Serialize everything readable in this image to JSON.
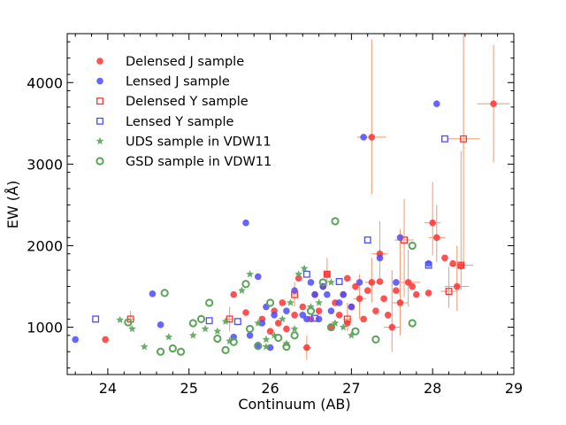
{
  "chart_data": {
    "type": "scatter",
    "title": "",
    "xlabel": "Continuum (AB)",
    "ylabel": "EW (Å)",
    "xlim": [
      23.5,
      29.0
    ],
    "ylim": [
      420,
      4600
    ],
    "xticks": [
      24,
      25,
      26,
      27,
      28,
      29
    ],
    "yticks": [
      1000,
      2000,
      3000,
      4000
    ],
    "legend_position": "top-left",
    "series": [
      {
        "name": "Delensed J sample",
        "marker": "filled-circle",
        "color": "#ff3333",
        "points": [
          {
            "x": 23.97,
            "y": 850
          },
          {
            "x": 25.55,
            "y": 1400
          },
          {
            "x": 25.7,
            "y": 1180
          },
          {
            "x": 25.9,
            "y": 1100
          },
          {
            "x": 26.0,
            "y": 950
          },
          {
            "x": 26.05,
            "y": 1200
          },
          {
            "x": 26.1,
            "y": 1050
          },
          {
            "x": 26.15,
            "y": 1300
          },
          {
            "x": 26.2,
            "y": 980
          },
          {
            "x": 26.3,
            "y": 1150
          },
          {
            "x": 26.35,
            "y": 1600
          },
          {
            "x": 26.4,
            "y": 1250
          },
          {
            "x": 26.45,
            "y": 750
          },
          {
            "x": 26.5,
            "y": 1100
          },
          {
            "x": 26.55,
            "y": 1400
          },
          {
            "x": 26.6,
            "y": 1200
          },
          {
            "x": 26.65,
            "y": 1500
          },
          {
            "x": 26.7,
            "y": 1650
          },
          {
            "x": 26.75,
            "y": 1000
          },
          {
            "x": 26.8,
            "y": 1300
          },
          {
            "x": 26.85,
            "y": 1150
          },
          {
            "x": 26.9,
            "y": 1400
          },
          {
            "x": 26.95,
            "y": 1050
          },
          {
            "x": 27.0,
            "y": 1250
          },
          {
            "x": 27.05,
            "y": 1500
          },
          {
            "x": 27.1,
            "y": 1350
          },
          {
            "x": 27.15,
            "y": 1100
          },
          {
            "x": 27.2,
            "y": 1450
          },
          {
            "x": 27.25,
            "y": 1550
          },
          {
            "x": 27.3,
            "y": 1200
          },
          {
            "x": 27.35,
            "y": 1900
          },
          {
            "x": 27.4,
            "y": 1350
          },
          {
            "x": 27.45,
            "y": 1150
          },
          {
            "x": 27.5,
            "y": 1000
          },
          {
            "x": 27.55,
            "y": 1450
          },
          {
            "x": 27.6,
            "y": 1300
          },
          {
            "x": 27.7,
            "y": 1550
          },
          {
            "x": 27.75,
            "y": 1500
          },
          {
            "x": 27.8,
            "y": 1400
          },
          {
            "x": 27.95,
            "y": 1420
          },
          {
            "x": 28.0,
            "y": 2280
          },
          {
            "x": 28.05,
            "y": 2100
          },
          {
            "x": 28.15,
            "y": 1850
          },
          {
            "x": 28.25,
            "y": 1780
          },
          {
            "x": 28.3,
            "y": 1500
          },
          {
            "x": 28.35,
            "y": 1750
          },
          {
            "x": 27.25,
            "y": 3330
          },
          {
            "x": 28.75,
            "y": 3740
          },
          {
            "x": 27.35,
            "y": 1560
          },
          {
            "x": 26.95,
            "y": 1600
          }
        ]
      },
      {
        "name": "Lensed J sample",
        "marker": "filled-circle",
        "color": "#4b4bff",
        "points": [
          {
            "x": 23.6,
            "y": 850
          },
          {
            "x": 24.55,
            "y": 1410
          },
          {
            "x": 24.65,
            "y": 1030
          },
          {
            "x": 25.55,
            "y": 880
          },
          {
            "x": 25.7,
            "y": 2280
          },
          {
            "x": 25.75,
            "y": 900
          },
          {
            "x": 25.85,
            "y": 1620
          },
          {
            "x": 25.9,
            "y": 1050
          },
          {
            "x": 25.95,
            "y": 1250
          },
          {
            "x": 26.0,
            "y": 750
          },
          {
            "x": 26.05,
            "y": 1150
          },
          {
            "x": 26.2,
            "y": 1200
          },
          {
            "x": 26.3,
            "y": 1450
          },
          {
            "x": 26.4,
            "y": 1150
          },
          {
            "x": 26.5,
            "y": 1550
          },
          {
            "x": 26.55,
            "y": 1400
          },
          {
            "x": 26.6,
            "y": 1100
          },
          {
            "x": 26.65,
            "y": 1500
          },
          {
            "x": 26.7,
            "y": 1400
          },
          {
            "x": 26.75,
            "y": 1200
          },
          {
            "x": 26.85,
            "y": 1300
          },
          {
            "x": 26.9,
            "y": 1400
          },
          {
            "x": 27.0,
            "y": 1250
          },
          {
            "x": 27.1,
            "y": 1550
          },
          {
            "x": 27.15,
            "y": 3330
          },
          {
            "x": 27.35,
            "y": 1850
          },
          {
            "x": 27.55,
            "y": 1550
          },
          {
            "x": 27.6,
            "y": 2100
          },
          {
            "x": 27.95,
            "y": 1780
          },
          {
            "x": 28.05,
            "y": 3740
          },
          {
            "x": 25.85,
            "y": 780
          },
          {
            "x": 26.45,
            "y": 1100
          }
        ]
      },
      {
        "name": "Delensed Y sample",
        "marker": "open-square",
        "color": "#ff3333",
        "points": [
          {
            "x": 24.28,
            "y": 1100
          },
          {
            "x": 25.5,
            "y": 1100
          },
          {
            "x": 26.3,
            "y": 1400
          },
          {
            "x": 26.7,
            "y": 1650
          },
          {
            "x": 26.95,
            "y": 1100
          },
          {
            "x": 27.65,
            "y": 2070
          },
          {
            "x": 28.2,
            "y": 1440
          },
          {
            "x": 28.35,
            "y": 1760
          },
          {
            "x": 28.38,
            "y": 3310
          }
        ]
      },
      {
        "name": "Lensed Y sample",
        "marker": "open-square",
        "color": "#4b4bff",
        "points": [
          {
            "x": 23.85,
            "y": 1100
          },
          {
            "x": 25.25,
            "y": 1080
          },
          {
            "x": 25.6,
            "y": 1070
          },
          {
            "x": 26.45,
            "y": 1650
          },
          {
            "x": 26.55,
            "y": 1110
          },
          {
            "x": 26.85,
            "y": 1560
          },
          {
            "x": 27.2,
            "y": 2070
          },
          {
            "x": 27.95,
            "y": 1760
          },
          {
            "x": 28.15,
            "y": 3310
          }
        ]
      },
      {
        "name": "UDS sample in VDW11",
        "marker": "filled-star",
        "color": "#5aa55a",
        "points": [
          {
            "x": 24.15,
            "y": 1090
          },
          {
            "x": 24.3,
            "y": 980
          },
          {
            "x": 24.45,
            "y": 760
          },
          {
            "x": 24.75,
            "y": 880
          },
          {
            "x": 25.05,
            "y": 900
          },
          {
            "x": 25.2,
            "y": 980
          },
          {
            "x": 25.35,
            "y": 950
          },
          {
            "x": 25.45,
            "y": 1070
          },
          {
            "x": 25.5,
            "y": 830
          },
          {
            "x": 25.65,
            "y": 1450
          },
          {
            "x": 25.75,
            "y": 1650
          },
          {
            "x": 25.85,
            "y": 1050
          },
          {
            "x": 25.95,
            "y": 760
          },
          {
            "x": 26.05,
            "y": 900
          },
          {
            "x": 26.15,
            "y": 1100
          },
          {
            "x": 26.25,
            "y": 1300
          },
          {
            "x": 26.3,
            "y": 980
          },
          {
            "x": 26.35,
            "y": 1650
          },
          {
            "x": 26.42,
            "y": 1720
          },
          {
            "x": 26.5,
            "y": 1250
          },
          {
            "x": 26.6,
            "y": 1300
          },
          {
            "x": 26.75,
            "y": 1550
          },
          {
            "x": 26.8,
            "y": 1050
          },
          {
            "x": 26.9,
            "y": 1000
          },
          {
            "x": 27.0,
            "y": 900
          },
          {
            "x": 26.2,
            "y": 800
          },
          {
            "x": 25.95,
            "y": 850
          }
        ]
      },
      {
        "name": "GSD sample in VDW11",
        "marker": "open-circle",
        "color": "#5aa55a",
        "points": [
          {
            "x": 24.25,
            "y": 1060
          },
          {
            "x": 24.7,
            "y": 1420
          },
          {
            "x": 24.65,
            "y": 700
          },
          {
            "x": 24.8,
            "y": 740
          },
          {
            "x": 24.9,
            "y": 700
          },
          {
            "x": 25.05,
            "y": 1050
          },
          {
            "x": 25.15,
            "y": 1100
          },
          {
            "x": 25.25,
            "y": 1300
          },
          {
            "x": 25.35,
            "y": 860
          },
          {
            "x": 25.45,
            "y": 720
          },
          {
            "x": 25.55,
            "y": 820
          },
          {
            "x": 25.7,
            "y": 1530
          },
          {
            "x": 25.75,
            "y": 980
          },
          {
            "x": 25.85,
            "y": 770
          },
          {
            "x": 26.0,
            "y": 1300
          },
          {
            "x": 26.1,
            "y": 870
          },
          {
            "x": 26.2,
            "y": 760
          },
          {
            "x": 26.3,
            "y": 900
          },
          {
            "x": 26.5,
            "y": 1200
          },
          {
            "x": 26.65,
            "y": 1550
          },
          {
            "x": 26.75,
            "y": 1000
          },
          {
            "x": 26.8,
            "y": 2300
          },
          {
            "x": 27.05,
            "y": 950
          },
          {
            "x": 27.3,
            "y": 850
          },
          {
            "x": 27.75,
            "y": 2000
          },
          {
            "x": 27.75,
            "y": 1050
          }
        ]
      }
    ],
    "error_bars": [
      {
        "x": 27.25,
        "y": 3330,
        "xerr": 0.18,
        "yerr_low": 700,
        "yerr_high": 1200
      },
      {
        "x": 28.75,
        "y": 3740,
        "xerr": 0.2,
        "yerr_low": 720,
        "yerr_high": 720
      },
      {
        "x": 28.38,
        "y": 3310,
        "xerr": 0.2,
        "yerr_low": 1550,
        "yerr_high": 1300
      },
      {
        "x": 28.35,
        "y": 1760,
        "xerr": 0.15,
        "yerr_low": 300,
        "yerr_high": 1400
      },
      {
        "x": 28.3,
        "y": 1500,
        "xerr": 0.15,
        "yerr_low": 300,
        "yerr_high": 500
      },
      {
        "x": 28.0,
        "y": 2280,
        "xerr": 0.1,
        "yerr_low": 400,
        "yerr_high": 500
      },
      {
        "x": 28.05,
        "y": 2100,
        "xerr": 0.1,
        "yerr_low": 300,
        "yerr_high": 400
      },
      {
        "x": 27.65,
        "y": 2070,
        "xerr": 0.12,
        "yerr_low": 700,
        "yerr_high": 500
      },
      {
        "x": 27.6,
        "y": 1300,
        "xerr": 0.1,
        "yerr_low": 400,
        "yerr_high": 900
      },
      {
        "x": 27.5,
        "y": 1000,
        "xerr": 0.1,
        "yerr_low": 300,
        "yerr_high": 700
      },
      {
        "x": 27.35,
        "y": 1900,
        "xerr": 0.1,
        "yerr_low": 300,
        "yerr_high": 400
      },
      {
        "x": 27.7,
        "y": 1550,
        "xerr": 0.15,
        "yerr_low": 300,
        "yerr_high": 400
      },
      {
        "x": 28.2,
        "y": 1440,
        "xerr": 0.1,
        "yerr_low": 200,
        "yerr_high": 300
      },
      {
        "x": 27.25,
        "y": 1550,
        "xerr": 0.08,
        "yerr_low": 250,
        "yerr_high": 300
      },
      {
        "x": 27.1,
        "y": 1350,
        "xerr": 0.08,
        "yerr_low": 250,
        "yerr_high": 300
      },
      {
        "x": 26.7,
        "y": 1650,
        "xerr": 0.05,
        "yerr_low": 150,
        "yerr_high": 200
      },
      {
        "x": 26.45,
        "y": 750,
        "xerr": 0.05,
        "yerr_low": 150,
        "yerr_high": 150
      },
      {
        "x": 25.5,
        "y": 1100,
        "xerr": 0.05,
        "yerr_low": 150,
        "yerr_high": 150
      },
      {
        "x": 24.28,
        "y": 1100,
        "xerr": 0.05,
        "yerr_low": 100,
        "yerr_high": 100
      },
      {
        "x": 26.3,
        "y": 1400,
        "xerr": 0.04,
        "yerr_low": 150,
        "yerr_high": 150
      },
      {
        "x": 26.95,
        "y": 1100,
        "xerr": 0.05,
        "yerr_low": 150,
        "yerr_high": 200
      }
    ],
    "error_bar_color": "#f4a07a"
  }
}
